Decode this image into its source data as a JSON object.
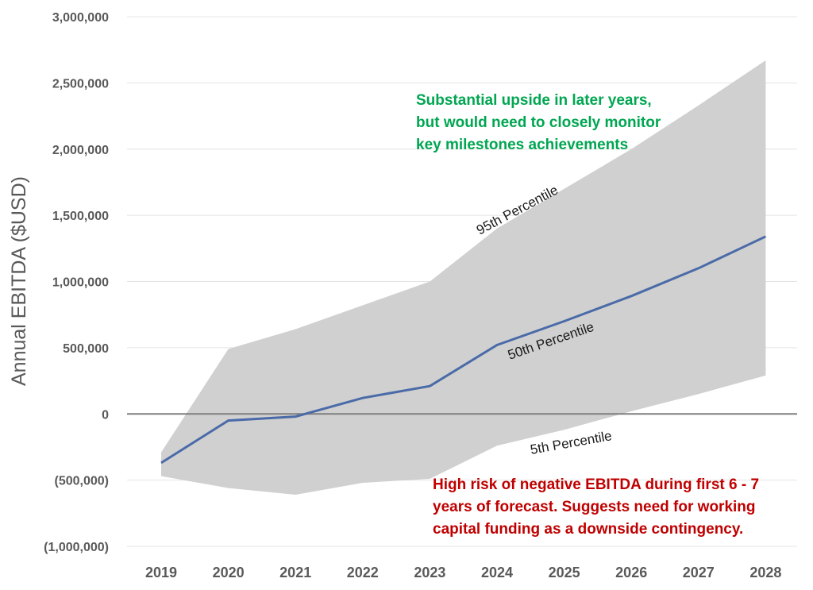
{
  "chart_data": {
    "type": "area",
    "categories": [
      "2019",
      "2020",
      "2021",
      "2022",
      "2023",
      "2024",
      "2025",
      "2026",
      "2027",
      "2028"
    ],
    "ylabel": "Annual EBITDA ($USD)",
    "ylim": [
      -1000000,
      3000000
    ],
    "yticks": [
      3000000,
      2500000,
      2000000,
      1500000,
      1000000,
      500000,
      0,
      -500000,
      -1000000
    ],
    "ytick_labels": [
      "3,000,000",
      "2,500,000",
      "2,000,000",
      "1,500,000",
      "1,000,000",
      "500,000",
      "0",
      "(500,000)",
      "(1,000,000)"
    ],
    "grid": true,
    "series": [
      {
        "name": "95th Percentile",
        "values": [
          -290000,
          490000,
          640000,
          820000,
          1000000,
          1400000,
          1700000,
          2000000,
          2330000,
          2670000
        ]
      },
      {
        "name": "50th Percentile",
        "values": [
          -370000,
          -50000,
          -20000,
          120000,
          210000,
          520000,
          700000,
          890000,
          1100000,
          1340000
        ]
      },
      {
        "name": "5th Percentile",
        "values": [
          -470000,
          -560000,
          -610000,
          -520000,
          -490000,
          -240000,
          -120000,
          20000,
          150000,
          290000
        ]
      }
    ],
    "annotations": {
      "upside": [
        "Substantial upside in later years,",
        "but would need to closely monitor",
        "key milestones achievements"
      ],
      "risk": [
        "High risk of negative EBITDA during first 6 - 7",
        "years of forecast.  Suggests need for working",
        "capital funding as a downside contingency."
      ]
    },
    "colors": {
      "band": "#d0d0d0",
      "median_line": "#4a6ba8",
      "zero_line": "#7f7f7f",
      "grid": "#e4e4e4",
      "upside_text": "#00a651",
      "risk_text": "#c00000"
    }
  }
}
